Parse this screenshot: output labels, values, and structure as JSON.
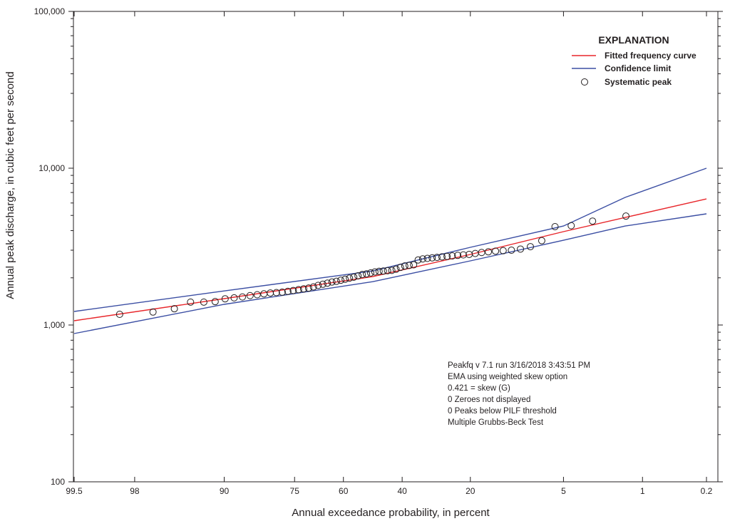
{
  "chart_data": {
    "type": "scatter",
    "title": "",
    "xlabel": "Annual exceedance probability, in percent",
    "ylabel": "Annual peak discharge, in cubic feet per second",
    "x_scale": "normal-probability (reversed, percent exceedance)",
    "y_scale": "log10",
    "xlim": [
      99.5,
      0.2
    ],
    "ylim": [
      100,
      100000
    ],
    "x_ticks": [
      99.5,
      98,
      90,
      75,
      60,
      40,
      20,
      5,
      1,
      0.2
    ],
    "x_tick_labels": [
      "99.5",
      "98",
      "90",
      "75",
      "60",
      "40",
      "20",
      "5",
      "1",
      "0.2"
    ],
    "y_ticks": [
      100,
      1000,
      10000,
      100000
    ],
    "y_tick_labels": [
      "100",
      "1,000",
      "10,000",
      "100,000"
    ],
    "grid": false,
    "legend": {
      "title": "EXPLANATION",
      "placement": "top-right",
      "entries": [
        {
          "label": "Fitted frequency curve",
          "color": "#e8262b",
          "kind": "line"
        },
        {
          "label": "Confidence limit",
          "color": "#3b4ea3",
          "kind": "line"
        },
        {
          "label": "Systematic peak",
          "color": "#231f20",
          "kind": "circle"
        }
      ]
    },
    "series": [
      {
        "name": "Fitted frequency curve",
        "type": "line",
        "color": "#e8262b",
        "x": [
          99.5,
          90,
          50,
          20,
          5,
          1.47,
          0.2
        ],
        "y": [
          1065,
          1473,
          2036,
          2818,
          3940,
          4850,
          6370
        ]
      },
      {
        "name": "Upper confidence limit",
        "type": "line",
        "color": "#3b4ea3",
        "x": [
          99.5,
          90,
          50,
          20,
          5,
          1.47,
          0.2
        ],
        "y": [
          1220,
          1650,
          2210,
          3130,
          4280,
          6520,
          10000
        ]
      },
      {
        "name": "Lower confidence limit",
        "type": "line",
        "color": "#3b4ea3",
        "x": [
          99.5,
          90,
          50,
          20,
          5,
          1.47,
          0.2
        ],
        "y": [
          882,
          1355,
          1890,
          2565,
          3470,
          4280,
          5120
        ]
      },
      {
        "name": "Systematic peak",
        "type": "scatter",
        "color": "#231f20",
        "x": [
          1.45,
          2.9,
          4.35,
          5.8,
          7.25,
          8.7,
          10.14,
          11.59,
          13.04,
          14.49,
          15.94,
          17.39,
          18.84,
          20.29,
          21.74,
          23.19,
          24.64,
          26.09,
          27.54,
          28.99,
          30.43,
          31.88,
          33.33,
          34.78,
          36.23,
          37.68,
          39.13,
          40.58,
          42.03,
          43.48,
          44.93,
          46.38,
          47.83,
          49.28,
          50.72,
          52.17,
          53.62,
          55.07,
          56.52,
          57.97,
          59.42,
          60.87,
          62.32,
          63.77,
          65.22,
          66.67,
          68.12,
          69.57,
          71.01,
          72.46,
          73.91,
          75.36,
          76.81,
          78.26,
          79.71,
          81.16,
          82.61,
          84.06,
          85.51,
          86.96,
          88.41,
          89.86,
          91.3,
          92.75,
          94.2,
          95.65,
          97.1,
          98.55
        ],
        "y": [
          4950,
          4600,
          4300,
          4240,
          3450,
          3160,
          3050,
          3000,
          2980,
          2960,
          2930,
          2900,
          2860,
          2820,
          2800,
          2780,
          2760,
          2740,
          2720,
          2700,
          2680,
          2660,
          2640,
          2600,
          2420,
          2400,
          2380,
          2330,
          2270,
          2230,
          2220,
          2210,
          2200,
          2180,
          2150,
          2120,
          2100,
          2060,
          2020,
          1990,
          1960,
          1930,
          1900,
          1880,
          1850,
          1820,
          1790,
          1750,
          1720,
          1700,
          1680,
          1660,
          1640,
          1620,
          1610,
          1600,
          1580,
          1560,
          1540,
          1510,
          1490,
          1470,
          1410,
          1400,
          1400,
          1270,
          1210,
          1170
        ]
      }
    ],
    "annotations": [
      "Peakfq v 7.1 run 3/16/2018 3:43:51 PM",
      "EMA using weighted skew option",
      "0.421 = skew (G)",
      "0 Zeroes not displayed",
      "0 Peaks below PILF threshold",
      "Multiple Grubbs-Beck Test"
    ]
  }
}
